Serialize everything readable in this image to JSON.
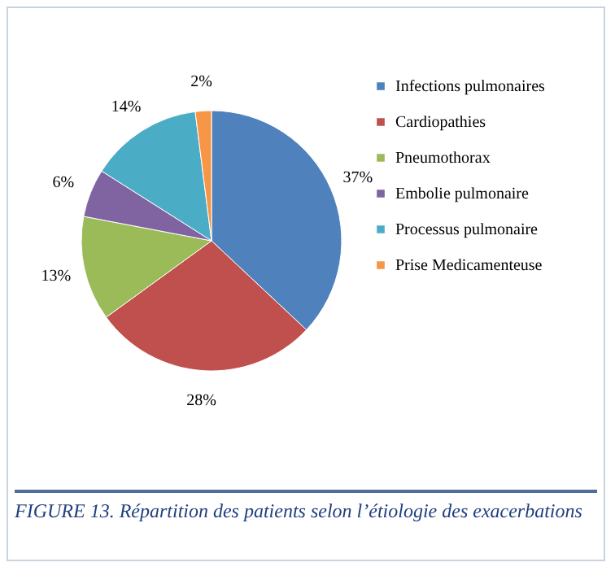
{
  "chart_data": {
    "type": "pie",
    "categories": [
      "Infections pulmonaires",
      "Cardiopathies",
      "Pneumothorax",
      "Embolie pulmonaire",
      "Processus pulmonaire",
      "Prise Medicamenteuse"
    ],
    "values": [
      37,
      28,
      13,
      6,
      14,
      2
    ],
    "colors": [
      "#4f81bd",
      "#c0504d",
      "#9bbb59",
      "#8064a2",
      "#4bacc6",
      "#f79646"
    ],
    "value_labels": [
      "37%",
      "28%",
      "13%",
      "6%",
      "14%",
      "2%"
    ],
    "legend": "right",
    "annotations": [
      "FIGURE 13. Répartition des patients selon l’étiologie des exacerbations"
    ]
  }
}
